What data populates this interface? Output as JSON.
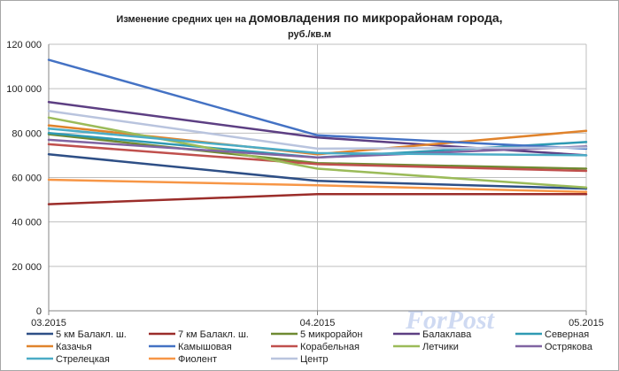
{
  "chart_data": {
    "type": "line",
    "title_part1": "Изменение  средних цен на ",
    "title_part2": "домовладения по микрорайонам города,",
    "title_line2": "руб./кв.м",
    "x": [
      "03.2015",
      "04.2015",
      "05.2015"
    ],
    "ylim": [
      0,
      120000
    ],
    "yticks": [
      0,
      20000,
      40000,
      60000,
      80000,
      100000,
      120000
    ],
    "ytick_labels": [
      "0",
      "20 000",
      "40 000",
      "60 000",
      "80 000",
      "100 000",
      "120 000"
    ],
    "grid": true,
    "legend_position": "bottom",
    "series": [
      {
        "name": "5 км Балакл. ш.",
        "color": "#2e4f86",
        "values": [
          70500,
          58500,
          55000
        ]
      },
      {
        "name": "7 км Балакл. ш.",
        "color": "#9b2d2a",
        "values": [
          48000,
          52500,
          52500
        ]
      },
      {
        "name": "5 микрорайон",
        "color": "#6f8a32",
        "values": [
          79500,
          66500,
          64000
        ]
      },
      {
        "name": "Балаклава",
        "color": "#5d3f83",
        "values": [
          94000,
          78000,
          70000
        ]
      },
      {
        "name": "Северная",
        "color": "#2f9ab3",
        "values": [
          80000,
          69000,
          76000
        ]
      },
      {
        "name": "Казачья",
        "color": "#e0832c",
        "values": [
          83500,
          70500,
          81000
        ]
      },
      {
        "name": "Камышовая",
        "color": "#4472c4",
        "values": [
          113000,
          79000,
          73000
        ]
      },
      {
        "name": "Корабельная",
        "color": "#c0504d",
        "values": [
          75000,
          66000,
          63000
        ]
      },
      {
        "name": "Летчики",
        "color": "#9bbb59",
        "values": [
          87000,
          64000,
          55500
        ]
      },
      {
        "name": "Острякова",
        "color": "#8064a2",
        "values": [
          77000,
          69000,
          74000
        ]
      },
      {
        "name": "Стрелецкая",
        "color": "#4bacc6",
        "values": [
          82000,
          71000,
          70000
        ]
      },
      {
        "name": "Фиолент",
        "color": "#f79646",
        "values": [
          59000,
          56500,
          53500
        ]
      },
      {
        "name": "Центр",
        "color": "#b9c4de",
        "values": [
          90000,
          73000,
          73500
        ]
      }
    ]
  },
  "watermark": "ForPost"
}
